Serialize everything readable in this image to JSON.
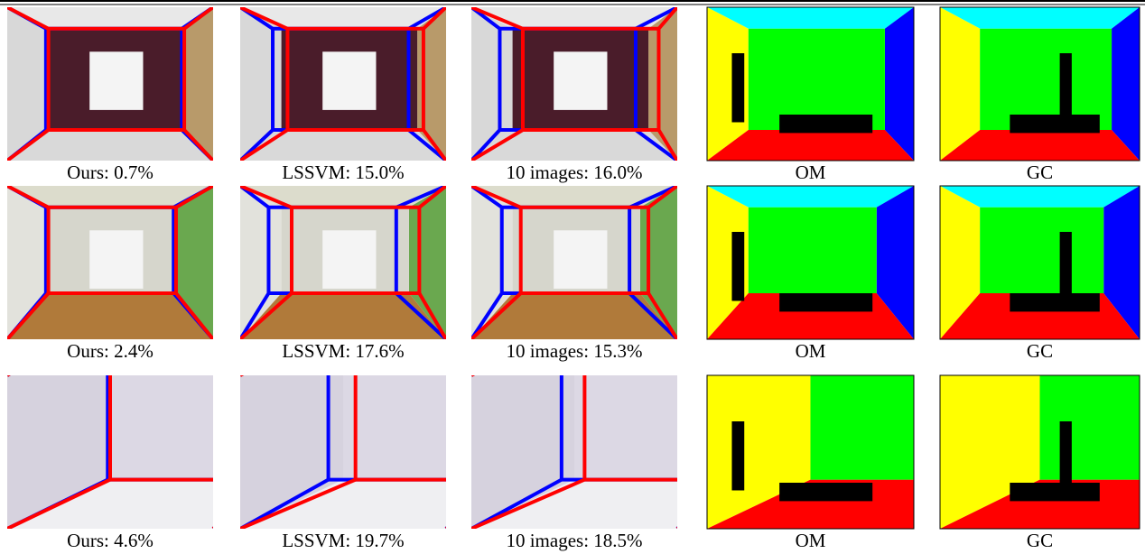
{
  "rows": [
    {
      "captions": [
        "Ours: 0.7%",
        "LSSVM: 15.0%",
        "10 images: 16.0%",
        "OM",
        "GC"
      ]
    },
    {
      "captions": [
        "Ours: 2.4%",
        "LSSVM: 17.6%",
        "10 images: 15.3%",
        "OM",
        "GC"
      ]
    },
    {
      "captions": [
        "Ours: 4.6%",
        "LSSVM: 19.7%",
        "10 images: 18.5%",
        "OM",
        "GC"
      ]
    }
  ]
}
